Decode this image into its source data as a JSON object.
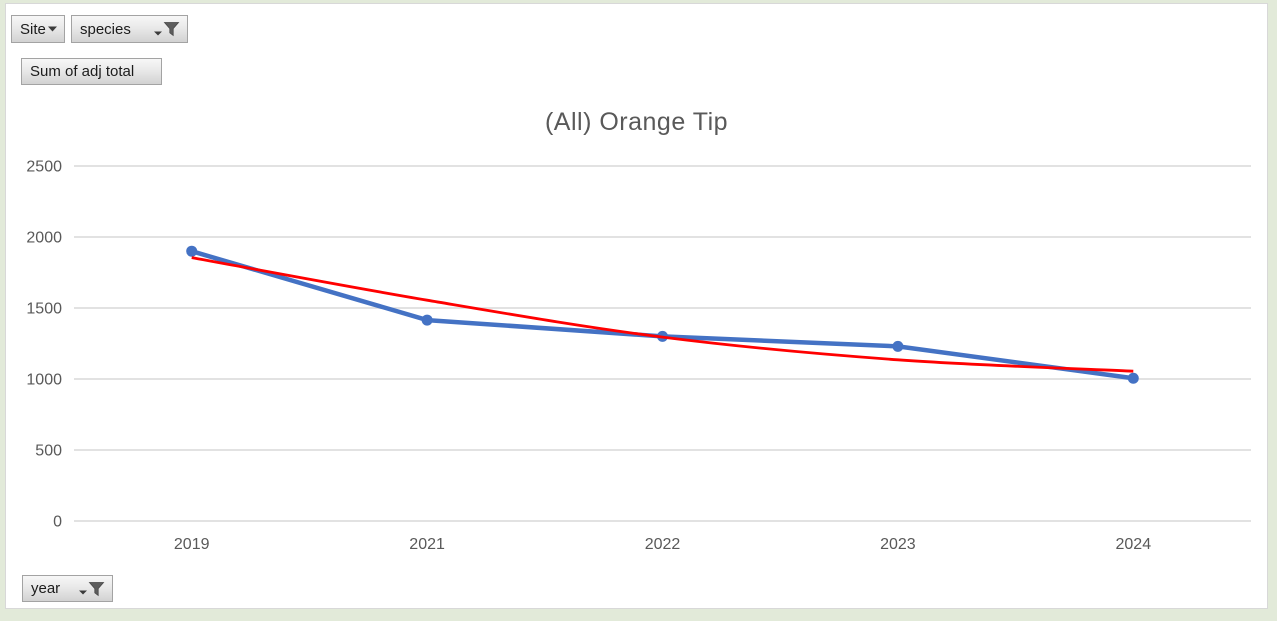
{
  "field_buttons": {
    "site": {
      "label": "Site"
    },
    "species": {
      "label": "species"
    },
    "value": {
      "label": "Sum of adj total"
    },
    "year": {
      "label": "year"
    }
  },
  "chart_data": {
    "type": "line",
    "title": "(All) Orange Tip",
    "categories": [
      "2019",
      "2021",
      "2022",
      "2023",
      "2024"
    ],
    "series": [
      {
        "name": "Sum of adj total",
        "color": "#4472C4",
        "values": [
          1900,
          1415,
          1300,
          1230,
          1005
        ],
        "markers": true
      },
      {
        "name": "trendline",
        "color": "#FF0000",
        "values": [
          1855,
          1555,
          1295,
          1135,
          1055
        ],
        "markers": false
      }
    ],
    "ylim": [
      0,
      2500
    ],
    "yticks": [
      0,
      500,
      1000,
      1500,
      2000,
      2500
    ],
    "grid": true,
    "legend": "none",
    "colors": {
      "grid": "#D9D9D9",
      "axis_text": "#595959",
      "title_text": "#595959",
      "series": "#4472C4",
      "trendline": "#FF0000",
      "page_background": "#E2EAD9"
    }
  }
}
